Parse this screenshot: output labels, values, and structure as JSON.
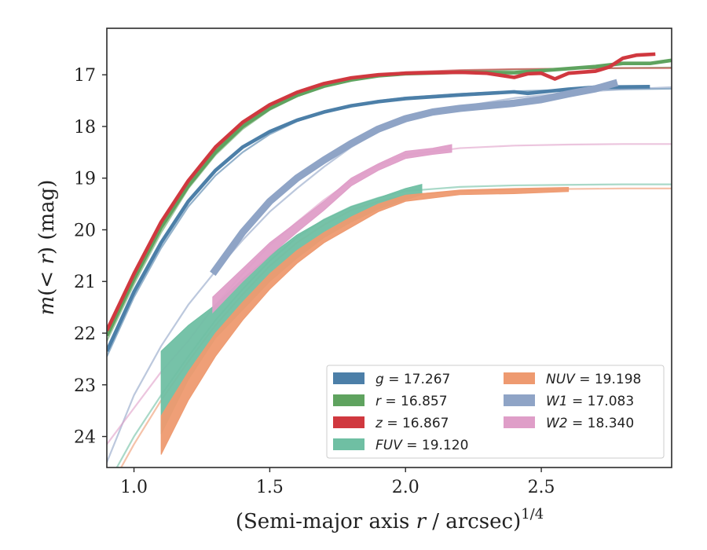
{
  "chart_data": {
    "type": "line",
    "xlabel": "(Semi-major axis r / arcsec)",
    "xlabel_superscript": "1/4",
    "ylabel": "m(< r) (mag)",
    "xlim": [
      0.9,
      2.98
    ],
    "ylim": [
      24.6,
      16.1
    ],
    "y_inverted": true,
    "grid": false,
    "legend_position": "lower-right",
    "x_ticks": [
      {
        "value": 1.0,
        "label": "1.0"
      },
      {
        "value": 1.5,
        "label": "1.5"
      },
      {
        "value": 2.0,
        "label": "2.0"
      },
      {
        "value": 2.5,
        "label": "2.5"
      }
    ],
    "y_ticks": [
      {
        "value": 17,
        "label": "17"
      },
      {
        "value": 18,
        "label": "18"
      },
      {
        "value": 19,
        "label": "19"
      },
      {
        "value": 20,
        "label": "20"
      },
      {
        "value": 21,
        "label": "21"
      },
      {
        "value": 22,
        "label": "22"
      },
      {
        "value": 23,
        "label": "23"
      },
      {
        "value": 24,
        "label": "24"
      }
    ],
    "series": [
      {
        "name": "g = 17.267",
        "band": "g",
        "mag": "17.267",
        "color": "#4c7fa8",
        "data_width": 0.05,
        "data": [
          [
            0.9,
            22.35
          ],
          [
            1.0,
            21.2
          ],
          [
            1.1,
            20.25
          ],
          [
            1.2,
            19.45
          ],
          [
            1.3,
            18.85
          ],
          [
            1.4,
            18.4
          ],
          [
            1.5,
            18.1
          ],
          [
            1.6,
            17.88
          ],
          [
            1.7,
            17.72
          ],
          [
            1.8,
            17.6
          ],
          [
            1.9,
            17.52
          ],
          [
            2.0,
            17.46
          ],
          [
            2.2,
            17.39
          ],
          [
            2.4,
            17.33
          ],
          [
            2.45,
            17.36
          ],
          [
            2.6,
            17.28
          ],
          [
            2.7,
            17.24
          ],
          [
            2.9,
            17.23
          ]
        ],
        "model": [
          [
            0.9,
            22.45
          ],
          [
            1.0,
            21.3
          ],
          [
            1.1,
            20.35
          ],
          [
            1.2,
            19.55
          ],
          [
            1.3,
            18.95
          ],
          [
            1.4,
            18.5
          ],
          [
            1.5,
            18.15
          ],
          [
            1.6,
            17.9
          ],
          [
            1.7,
            17.73
          ],
          [
            1.8,
            17.6
          ],
          [
            1.9,
            17.5
          ],
          [
            2.0,
            17.44
          ],
          [
            2.2,
            17.37
          ],
          [
            2.4,
            17.32
          ],
          [
            2.6,
            17.29
          ],
          [
            2.8,
            17.28
          ],
          [
            2.98,
            17.27
          ]
        ]
      },
      {
        "name": "r = 16.857",
        "band": "r",
        "mag": "16.857",
        "color": "#5fa35f",
        "data_width": 0.05,
        "data": [
          [
            0.9,
            22.05
          ],
          [
            1.0,
            20.95
          ],
          [
            1.1,
            19.95
          ],
          [
            1.2,
            19.15
          ],
          [
            1.3,
            18.5
          ],
          [
            1.4,
            18.0
          ],
          [
            1.5,
            17.65
          ],
          [
            1.6,
            17.4
          ],
          [
            1.7,
            17.22
          ],
          [
            1.8,
            17.1
          ],
          [
            1.9,
            17.02
          ],
          [
            2.0,
            16.98
          ],
          [
            2.2,
            16.95
          ],
          [
            2.4,
            16.96
          ],
          [
            2.5,
            16.92
          ],
          [
            2.7,
            16.84
          ],
          [
            2.8,
            16.78
          ],
          [
            2.9,
            16.78
          ],
          [
            2.98,
            16.72
          ]
        ],
        "model": [
          [
            0.9,
            22.15
          ],
          [
            1.0,
            21.05
          ],
          [
            1.1,
            20.05
          ],
          [
            1.2,
            19.2
          ],
          [
            1.3,
            18.55
          ],
          [
            1.4,
            18.05
          ],
          [
            1.5,
            17.68
          ],
          [
            1.6,
            17.42
          ],
          [
            1.7,
            17.23
          ],
          [
            1.8,
            17.1
          ],
          [
            1.9,
            17.01
          ],
          [
            2.0,
            16.96
          ],
          [
            2.2,
            16.92
          ],
          [
            2.4,
            16.9
          ],
          [
            2.6,
            16.88
          ],
          [
            2.8,
            16.87
          ],
          [
            2.98,
            16.86
          ]
        ]
      },
      {
        "name": "z = 16.867",
        "band": "z",
        "mag": "16.867",
        "color": "#d0383f",
        "data_width": 0.05,
        "data": [
          [
            0.9,
            21.95
          ],
          [
            1.0,
            20.85
          ],
          [
            1.1,
            19.85
          ],
          [
            1.2,
            19.05
          ],
          [
            1.3,
            18.4
          ],
          [
            1.4,
            17.92
          ],
          [
            1.5,
            17.58
          ],
          [
            1.6,
            17.34
          ],
          [
            1.7,
            17.17
          ],
          [
            1.8,
            17.06
          ],
          [
            1.9,
            17.0
          ],
          [
            2.0,
            16.97
          ],
          [
            2.2,
            16.95
          ],
          [
            2.3,
            16.97
          ],
          [
            2.4,
            17.05
          ],
          [
            2.45,
            16.98
          ],
          [
            2.5,
            16.97
          ],
          [
            2.55,
            17.08
          ],
          [
            2.6,
            16.97
          ],
          [
            2.7,
            16.93
          ],
          [
            2.75,
            16.85
          ],
          [
            2.8,
            16.68
          ],
          [
            2.85,
            16.62
          ],
          [
            2.92,
            16.6
          ]
        ],
        "model": [
          [
            0.9,
            22.05
          ],
          [
            1.0,
            20.95
          ],
          [
            1.1,
            19.95
          ],
          [
            1.2,
            19.12
          ],
          [
            1.3,
            18.47
          ],
          [
            1.4,
            17.98
          ],
          [
            1.5,
            17.62
          ],
          [
            1.6,
            17.37
          ],
          [
            1.7,
            17.19
          ],
          [
            1.8,
            17.07
          ],
          [
            1.9,
            17.0
          ],
          [
            2.0,
            16.95
          ],
          [
            2.2,
            16.91
          ],
          [
            2.4,
            16.89
          ],
          [
            2.6,
            16.88
          ],
          [
            2.8,
            16.87
          ],
          [
            2.98,
            16.87
          ]
        ]
      },
      {
        "name": "FUV = 19.120",
        "band": "FUV",
        "mag": "19.120",
        "color": "#6fbfa3",
        "data_upper": [
          [
            1.1,
            22.35
          ],
          [
            1.2,
            21.85
          ],
          [
            1.3,
            21.45
          ],
          [
            1.4,
            20.95
          ],
          [
            1.5,
            20.5
          ],
          [
            1.6,
            20.1
          ],
          [
            1.7,
            19.8
          ],
          [
            1.8,
            19.55
          ],
          [
            1.9,
            19.38
          ],
          [
            2.0,
            19.2
          ],
          [
            2.06,
            19.12
          ]
        ],
        "data_lower": [
          [
            1.1,
            23.95
          ],
          [
            1.2,
            22.9
          ],
          [
            1.3,
            22.1
          ],
          [
            1.4,
            21.55
          ],
          [
            1.5,
            21.0
          ],
          [
            1.6,
            20.55
          ],
          [
            1.7,
            20.15
          ],
          [
            1.8,
            19.85
          ],
          [
            1.9,
            19.6
          ],
          [
            2.0,
            19.42
          ],
          [
            2.06,
            19.32
          ]
        ],
        "model": [
          [
            0.9,
            24.95
          ],
          [
            1.0,
            24.0
          ],
          [
            1.1,
            23.2
          ],
          [
            1.2,
            22.45
          ],
          [
            1.3,
            21.75
          ],
          [
            1.4,
            21.15
          ],
          [
            1.5,
            20.6
          ],
          [
            1.6,
            20.15
          ],
          [
            1.7,
            19.8
          ],
          [
            1.8,
            19.55
          ],
          [
            1.9,
            19.38
          ],
          [
            2.0,
            19.25
          ],
          [
            2.2,
            19.17
          ],
          [
            2.4,
            19.14
          ],
          [
            2.6,
            19.13
          ],
          [
            2.8,
            19.12
          ],
          [
            2.98,
            19.12
          ]
        ]
      },
      {
        "name": "NUV = 19.198",
        "band": "NUV",
        "mag": "19.198",
        "color": "#ee9a70",
        "data_upper": [
          [
            1.1,
            23.6
          ],
          [
            1.2,
            22.75
          ],
          [
            1.3,
            22.0
          ],
          [
            1.4,
            21.4
          ],
          [
            1.5,
            20.85
          ],
          [
            1.6,
            20.4
          ],
          [
            1.7,
            20.05
          ],
          [
            1.8,
            19.75
          ],
          [
            1.9,
            19.5
          ],
          [
            2.0,
            19.33
          ],
          [
            2.2,
            19.23
          ],
          [
            2.4,
            19.2
          ],
          [
            2.6,
            19.18
          ]
        ],
        "data_lower": [
          [
            1.1,
            24.35
          ],
          [
            1.2,
            23.3
          ],
          [
            1.3,
            22.45
          ],
          [
            1.4,
            21.75
          ],
          [
            1.5,
            21.15
          ],
          [
            1.6,
            20.65
          ],
          [
            1.7,
            20.25
          ],
          [
            1.8,
            19.95
          ],
          [
            1.9,
            19.65
          ],
          [
            2.0,
            19.45
          ],
          [
            2.2,
            19.32
          ],
          [
            2.4,
            19.3
          ],
          [
            2.6,
            19.26
          ]
        ],
        "model": [
          [
            0.9,
            25.1
          ],
          [
            1.0,
            24.15
          ],
          [
            1.1,
            23.3
          ],
          [
            1.2,
            22.55
          ],
          [
            1.3,
            21.85
          ],
          [
            1.4,
            21.25
          ],
          [
            1.5,
            20.7
          ],
          [
            1.6,
            20.25
          ],
          [
            1.7,
            19.9
          ],
          [
            1.8,
            19.62
          ],
          [
            1.9,
            19.45
          ],
          [
            2.0,
            19.33
          ],
          [
            2.2,
            19.25
          ],
          [
            2.4,
            19.22
          ],
          [
            2.6,
            19.21
          ],
          [
            2.8,
            19.2
          ],
          [
            2.98,
            19.2
          ]
        ]
      },
      {
        "name": "W1 = 17.083",
        "band": "W1",
        "mag": "17.083",
        "color": "#8fa4c6",
        "data_width": 0.1,
        "data": [
          [
            1.29,
            20.85
          ],
          [
            1.4,
            20.05
          ],
          [
            1.5,
            19.45
          ],
          [
            1.6,
            19.0
          ],
          [
            1.7,
            18.65
          ],
          [
            1.8,
            18.33
          ],
          [
            1.9,
            18.05
          ],
          [
            2.0,
            17.85
          ],
          [
            2.1,
            17.72
          ],
          [
            2.2,
            17.65
          ],
          [
            2.3,
            17.6
          ],
          [
            2.4,
            17.55
          ],
          [
            2.5,
            17.48
          ],
          [
            2.6,
            17.37
          ],
          [
            2.7,
            17.27
          ],
          [
            2.78,
            17.15
          ]
        ],
        "model": [
          [
            0.9,
            24.5
          ],
          [
            1.0,
            23.2
          ],
          [
            1.1,
            22.25
          ],
          [
            1.2,
            21.45
          ],
          [
            1.3,
            20.8
          ],
          [
            1.4,
            20.2
          ],
          [
            1.5,
            19.65
          ],
          [
            1.6,
            19.2
          ],
          [
            1.7,
            18.78
          ],
          [
            1.8,
            18.4
          ],
          [
            1.9,
            18.1
          ],
          [
            2.0,
            17.88
          ],
          [
            2.2,
            17.62
          ],
          [
            2.4,
            17.45
          ],
          [
            2.6,
            17.35
          ],
          [
            2.8,
            17.28
          ],
          [
            2.98,
            17.24
          ]
        ]
      },
      {
        "name": "W2 = 18.340",
        "band": "W2",
        "mag": "18.340",
        "color": "#df9ec8",
        "data_upper": [
          [
            1.29,
            21.3
          ],
          [
            1.4,
            20.75
          ],
          [
            1.5,
            20.25
          ],
          [
            1.6,
            19.85
          ],
          [
            1.7,
            19.45
          ],
          [
            1.8,
            19.0
          ],
          [
            1.9,
            18.72
          ],
          [
            2.0,
            18.48
          ],
          [
            2.1,
            18.42
          ],
          [
            2.17,
            18.35
          ]
        ],
        "data_lower": [
          [
            1.29,
            21.6
          ],
          [
            1.4,
            21.0
          ],
          [
            1.5,
            20.5
          ],
          [
            1.6,
            20.05
          ],
          [
            1.7,
            19.62
          ],
          [
            1.8,
            19.15
          ],
          [
            1.9,
            18.85
          ],
          [
            2.0,
            18.62
          ],
          [
            2.1,
            18.54
          ],
          [
            2.17,
            18.5
          ]
        ],
        "model": [
          [
            0.9,
            24.15
          ],
          [
            1.0,
            23.45
          ],
          [
            1.1,
            22.75
          ],
          [
            1.2,
            22.15
          ],
          [
            1.3,
            21.45
          ],
          [
            1.4,
            20.85
          ],
          [
            1.5,
            20.3
          ],
          [
            1.6,
            19.85
          ],
          [
            1.7,
            19.42
          ],
          [
            1.8,
            19.05
          ],
          [
            1.9,
            18.75
          ],
          [
            2.0,
            18.55
          ],
          [
            2.2,
            18.42
          ],
          [
            2.4,
            18.37
          ],
          [
            2.6,
            18.35
          ],
          [
            2.8,
            18.34
          ],
          [
            2.98,
            18.34
          ]
        ]
      }
    ]
  }
}
